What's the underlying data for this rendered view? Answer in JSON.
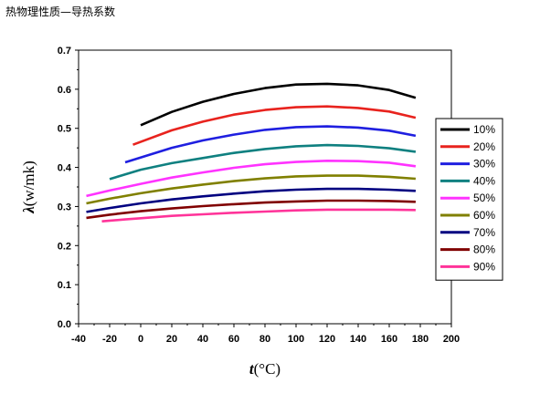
{
  "caption": "热物理性质—导热系数",
  "chart_data": {
    "type": "line",
    "xlabel_italic": "t",
    "xlabel_unit": "(°C)",
    "ylabel_symbol": "λ",
    "ylabel_unit": "(w/mk)",
    "xlim": [
      -40,
      200
    ],
    "ylim": [
      0.0,
      0.7
    ],
    "xticks": [
      "-40",
      "-20",
      "0",
      "20",
      "40",
      "60",
      "80",
      "100",
      "120",
      "140",
      "160",
      "180",
      "200"
    ],
    "yticks": [
      "0.0",
      "0.1",
      "0.2",
      "0.3",
      "0.4",
      "0.5",
      "0.6",
      "0.7"
    ],
    "grid": false,
    "legend_position": "right",
    "series": [
      {
        "name": "10%",
        "color": "#000000",
        "x": [
          0,
          20,
          40,
          60,
          80,
          100,
          120,
          140,
          160,
          177
        ],
        "y": [
          0.508,
          0.542,
          0.568,
          0.588,
          0.603,
          0.612,
          0.614,
          0.61,
          0.598,
          0.578
        ]
      },
      {
        "name": "20%",
        "color": "#e8231e",
        "x": [
          -5,
          20,
          40,
          60,
          80,
          100,
          120,
          140,
          160,
          177
        ],
        "y": [
          0.458,
          0.495,
          0.517,
          0.535,
          0.547,
          0.554,
          0.556,
          0.552,
          0.543,
          0.527
        ]
      },
      {
        "name": "30%",
        "color": "#1f1fe0",
        "x": [
          -10,
          20,
          40,
          60,
          80,
          100,
          120,
          140,
          160,
          177
        ],
        "y": [
          0.413,
          0.45,
          0.469,
          0.484,
          0.496,
          0.503,
          0.505,
          0.502,
          0.494,
          0.481
        ]
      },
      {
        "name": "40%",
        "color": "#0f8080",
        "x": [
          -20,
          0,
          20,
          40,
          60,
          80,
          100,
          120,
          140,
          160,
          177
        ],
        "y": [
          0.37,
          0.394,
          0.411,
          0.424,
          0.437,
          0.447,
          0.454,
          0.457,
          0.455,
          0.449,
          0.44
        ]
      },
      {
        "name": "50%",
        "color": "#ff33ff",
        "x": [
          -35,
          -20,
          0,
          20,
          40,
          60,
          80,
          100,
          120,
          140,
          160,
          177
        ],
        "y": [
          0.327,
          0.341,
          0.358,
          0.374,
          0.387,
          0.399,
          0.408,
          0.414,
          0.417,
          0.416,
          0.412,
          0.403
        ]
      },
      {
        "name": "60%",
        "color": "#808000",
        "x": [
          -35,
          -20,
          0,
          20,
          40,
          60,
          80,
          100,
          120,
          140,
          160,
          177
        ],
        "y": [
          0.308,
          0.32,
          0.334,
          0.346,
          0.356,
          0.365,
          0.372,
          0.377,
          0.379,
          0.379,
          0.376,
          0.371
        ]
      },
      {
        "name": "70%",
        "color": "#000080",
        "x": [
          -35,
          -20,
          0,
          20,
          40,
          60,
          80,
          100,
          120,
          140,
          160,
          177
        ],
        "y": [
          0.286,
          0.296,
          0.308,
          0.318,
          0.326,
          0.333,
          0.339,
          0.343,
          0.345,
          0.345,
          0.343,
          0.34
        ]
      },
      {
        "name": "80%",
        "color": "#800000",
        "x": [
          -35,
          -20,
          0,
          20,
          40,
          60,
          80,
          100,
          120,
          140,
          160,
          177
        ],
        "y": [
          0.271,
          0.279,
          0.288,
          0.295,
          0.301,
          0.306,
          0.31,
          0.313,
          0.315,
          0.315,
          0.314,
          0.312
        ]
      },
      {
        "name": "90%",
        "color": "#ff3399",
        "x": [
          -25,
          -10,
          0,
          20,
          40,
          60,
          80,
          100,
          120,
          140,
          160,
          177
        ],
        "y": [
          0.262,
          0.267,
          0.27,
          0.276,
          0.28,
          0.284,
          0.287,
          0.29,
          0.292,
          0.292,
          0.292,
          0.291
        ]
      }
    ]
  }
}
